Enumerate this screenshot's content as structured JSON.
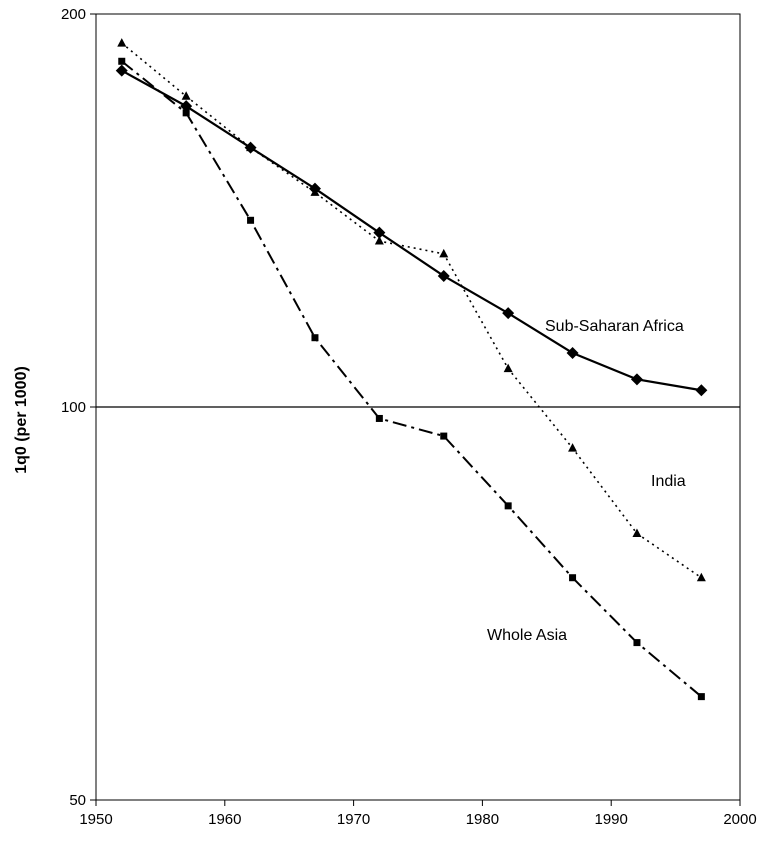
{
  "chart_data": {
    "type": "line",
    "ylabel": "1q0 (per 1000)",
    "xlabel": "",
    "y_scale": "log",
    "xlim": [
      1950,
      2000
    ],
    "ylim": [
      50,
      200
    ],
    "x_ticks": [
      1950,
      1960,
      1970,
      1980,
      1990,
      2000
    ],
    "y_ticks": [
      50,
      100,
      200
    ],
    "reference_line_y": 100,
    "x": [
      1952,
      1957,
      1962,
      1967,
      1972,
      1977,
      1982,
      1987,
      1992,
      1997
    ],
    "series": [
      {
        "name": "Sub-Saharan Africa",
        "style": "solid",
        "marker": "diamond",
        "values": [
          181,
          170,
          158,
          147,
          136,
          126,
          118,
          110,
          105,
          103
        ]
      },
      {
        "name": "India",
        "style": "dotted",
        "marker": "triangle",
        "values": [
          190,
          173,
          158,
          146,
          134,
          131,
          107,
          93,
          80,
          74
        ]
      },
      {
        "name": "Whole Asia",
        "style": "dash-dot",
        "marker": "square",
        "values": [
          184,
          168,
          139,
          113,
          98,
          95,
          84,
          74,
          66,
          60
        ]
      }
    ]
  },
  "colors": {
    "line": "#000000",
    "background": "#ffffff"
  }
}
